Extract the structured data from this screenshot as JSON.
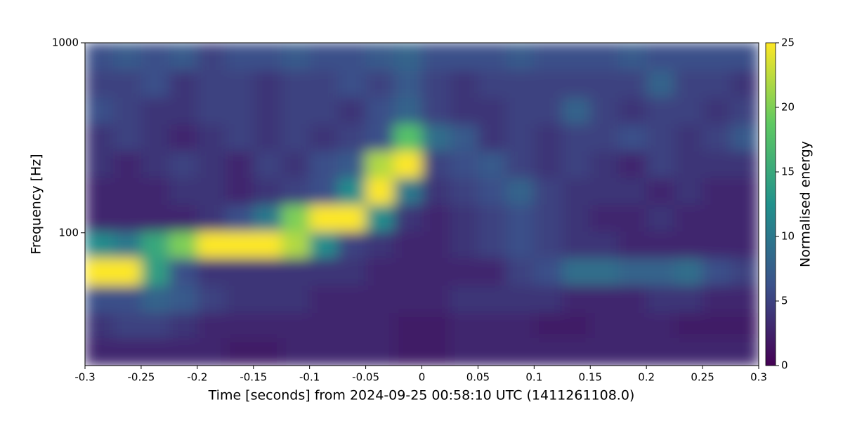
{
  "chart_data": {
    "type": "heatmap",
    "xlabel": "Time [seconds] from 2024-09-25 00:58:10 UTC (1411261108.0)",
    "ylabel": "Frequency [Hz]",
    "colorbar_label": "Normalised energy",
    "colormap": "viridis",
    "yscale": "log",
    "xlim": [
      -0.3,
      0.3
    ],
    "ylim": [
      20,
      1000
    ],
    "clim": [
      0,
      25
    ],
    "xticks": [
      -0.3,
      -0.25,
      -0.2,
      -0.15,
      -0.1,
      -0.05,
      0,
      0.05,
      0.1,
      0.15,
      0.2,
      0.25,
      0.3
    ],
    "yticks": [
      100,
      1000
    ],
    "cticks": [
      0,
      5,
      10,
      15,
      20,
      25
    ],
    "xbins": [
      -0.3,
      -0.275,
      -0.25,
      -0.225,
      -0.2,
      -0.175,
      -0.15,
      -0.125,
      -0.1,
      -0.075,
      -0.05,
      -0.025,
      0,
      0.025,
      0.05,
      0.075,
      0.1,
      0.125,
      0.15,
      0.175,
      0.2,
      0.225,
      0.25,
      0.275,
      0.3
    ],
    "ybins": [
      20,
      28,
      38,
      53,
      74,
      102,
      141,
      195,
      270,
      374,
      518,
      718,
      1000
    ],
    "values": [
      [
        3,
        3,
        3,
        3,
        3,
        2,
        2,
        3,
        3,
        3,
        3,
        2,
        2,
        3,
        3,
        3,
        3,
        3,
        3,
        3,
        3,
        3,
        3,
        3
      ],
      [
        4,
        5,
        5,
        4,
        3,
        3,
        3,
        3,
        3,
        3,
        3,
        2,
        2,
        3,
        3,
        3,
        2,
        2,
        3,
        3,
        3,
        2,
        2,
        2
      ],
      [
        6,
        6,
        8,
        7,
        5,
        4,
        4,
        4,
        3,
        3,
        3,
        3,
        3,
        4,
        4,
        4,
        4,
        3,
        3,
        3,
        4,
        4,
        3,
        3
      ],
      [
        25,
        25,
        14,
        6,
        4,
        4,
        4,
        4,
        4,
        4,
        3,
        3,
        3,
        3,
        3,
        5,
        6,
        9,
        9,
        8,
        8,
        9,
        6,
        5
      ],
      [
        12,
        10,
        15,
        20,
        25,
        25,
        25,
        22,
        12,
        5,
        4,
        3,
        3,
        4,
        5,
        6,
        5,
        4,
        4,
        3,
        3,
        3,
        3,
        3
      ],
      [
        3,
        3,
        3,
        3,
        4,
        6,
        10,
        20,
        25,
        25,
        12,
        4,
        3,
        4,
        5,
        6,
        5,
        4,
        3,
        3,
        4,
        3,
        3,
        3
      ],
      [
        3,
        3,
        3,
        4,
        4,
        3,
        4,
        5,
        6,
        12,
        25,
        10,
        4,
        5,
        6,
        8,
        5,
        4,
        4,
        4,
        3,
        4,
        3,
        3
      ],
      [
        4,
        3,
        4,
        5,
        4,
        3,
        5,
        4,
        6,
        7,
        22,
        25,
        5,
        6,
        7,
        5,
        4,
        5,
        4,
        3,
        5,
        4,
        4,
        4
      ],
      [
        4,
        5,
        4,
        3,
        4,
        5,
        4,
        5,
        4,
        5,
        6,
        18,
        9,
        7,
        4,
        5,
        4,
        5,
        5,
        6,
        5,
        4,
        5,
        7
      ],
      [
        6,
        5,
        4,
        4,
        5,
        5,
        4,
        5,
        5,
        4,
        6,
        8,
        5,
        4,
        4,
        5,
        5,
        8,
        5,
        4,
        5,
        5,
        4,
        5
      ],
      [
        5,
        5,
        6,
        4,
        5,
        5,
        4,
        5,
        5,
        6,
        5,
        7,
        5,
        4,
        5,
        5,
        5,
        5,
        5,
        5,
        8,
        5,
        5,
        4
      ],
      [
        6,
        7,
        6,
        7,
        5,
        6,
        6,
        7,
        6,
        6,
        7,
        8,
        6,
        6,
        6,
        7,
        6,
        6,
        6,
        7,
        6,
        6,
        6,
        6
      ]
    ]
  }
}
